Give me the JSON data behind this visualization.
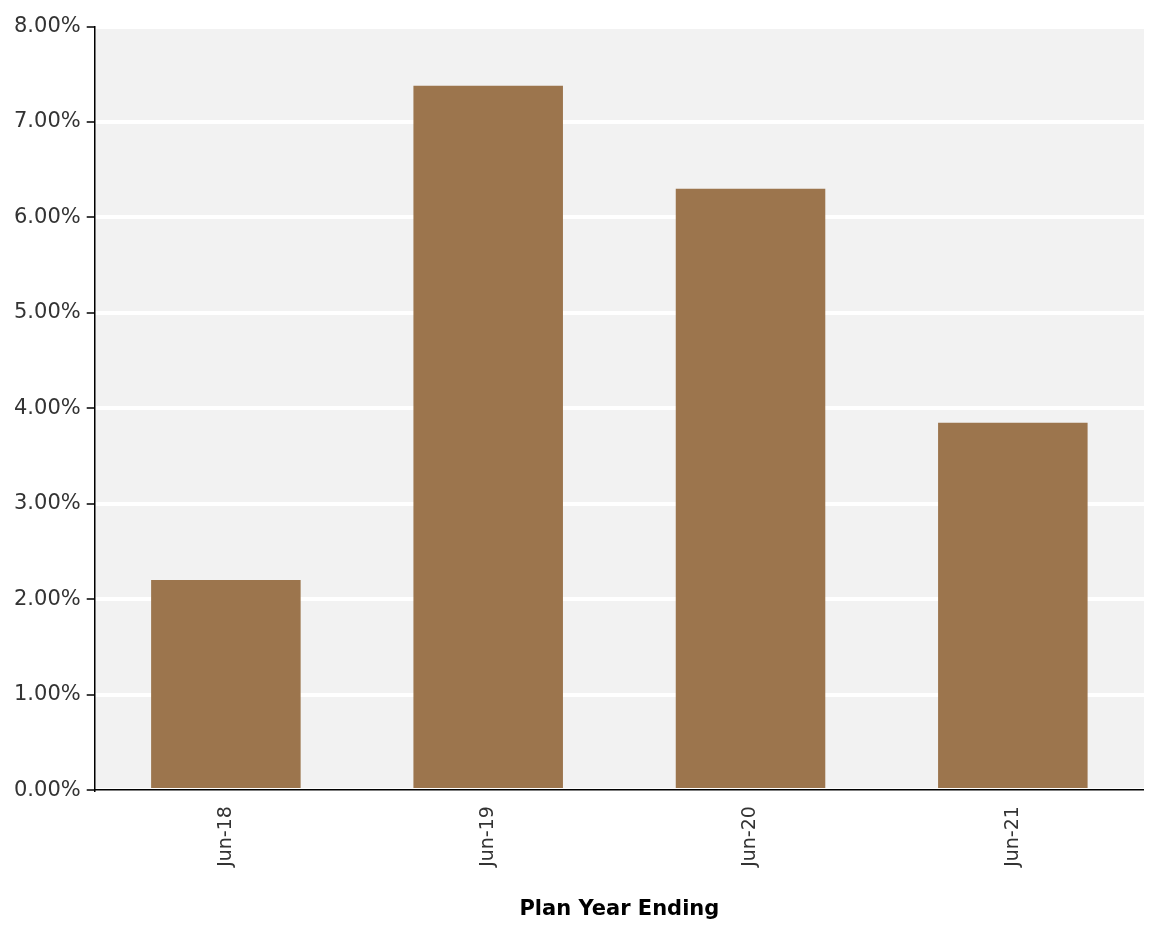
{
  "chart_data": {
    "type": "bar",
    "xlabel": "Plan Year Ending",
    "categories": [
      "Jun-18",
      "Jun-19",
      "Jun-20",
      "Jun-21"
    ],
    "values": [
      2.2,
      7.38,
      6.3,
      3.85
    ],
    "color": "#9c754d",
    "ylim": [
      0,
      8
    ],
    "yticks": [
      {
        "value": 0,
        "label": "0.00%"
      },
      {
        "value": 1,
        "label": "1.00%"
      },
      {
        "value": 2,
        "label": "2.00%"
      },
      {
        "value": 3,
        "label": "3.00%"
      },
      {
        "value": 4,
        "label": "4.00%"
      },
      {
        "value": 5,
        "label": "5.00%"
      },
      {
        "value": 6,
        "label": "6.00%"
      },
      {
        "value": 7,
        "label": "7.00%"
      },
      {
        "value": 8,
        "label": "8.00%"
      }
    ],
    "grid": "y"
  }
}
